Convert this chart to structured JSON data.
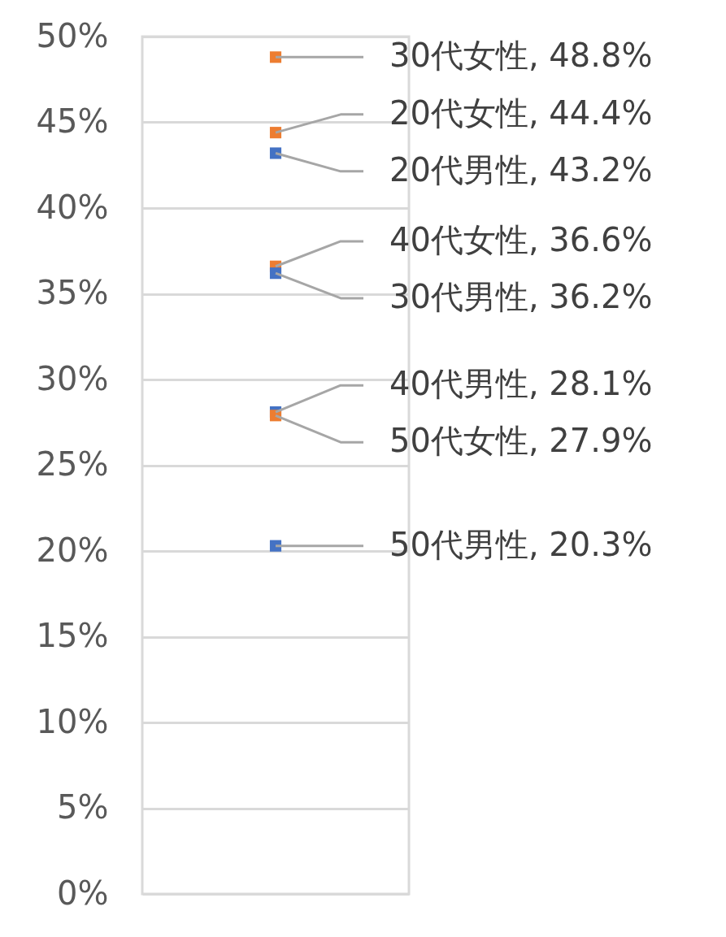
{
  "chart_data": {
    "type": "scatter",
    "categories": [
      null
    ],
    "ylim": [
      0,
      50
    ],
    "yticks": [
      {
        "value": 0,
        "label": "0%"
      },
      {
        "value": 5,
        "label": "5%"
      },
      {
        "value": 10,
        "label": "10%"
      },
      {
        "value": 15,
        "label": "15%"
      },
      {
        "value": 20,
        "label": "20%"
      },
      {
        "value": 25,
        "label": "25%"
      },
      {
        "value": 30,
        "label": "30%"
      },
      {
        "value": 35,
        "label": "35%"
      },
      {
        "value": 40,
        "label": "40%"
      },
      {
        "value": 45,
        "label": "45%"
      },
      {
        "value": 50,
        "label": "50%"
      }
    ],
    "grid": "y",
    "marker": "square",
    "legend": false,
    "series": [
      {
        "color": "#ed7d31",
        "values": [
          48.8
        ],
        "value_labels": [
          "30代女性, 48.8%"
        ]
      },
      {
        "color": "#ed7d31",
        "values": [
          44.4
        ],
        "value_labels": [
          "20代女性, 44.4%"
        ]
      },
      {
        "color": "#4472c4",
        "values": [
          43.2
        ],
        "value_labels": [
          "20代男性, 43.2%"
        ]
      },
      {
        "color": "#ed7d31",
        "values": [
          36.6
        ],
        "value_labels": [
          "40代女性, 36.6%"
        ]
      },
      {
        "color": "#4472c4",
        "values": [
          36.2
        ],
        "value_labels": [
          "30代男性, 36.2%"
        ]
      },
      {
        "color": "#4472c4",
        "values": [
          28.1
        ],
        "value_labels": [
          "40代男性, 28.1%"
        ]
      },
      {
        "color": "#ed7d31",
        "values": [
          27.9
        ],
        "value_labels": [
          "50代女性, 27.9%"
        ]
      },
      {
        "color": "#4472c4",
        "values": [
          20.3
        ],
        "value_labels": [
          "50代男性, 20.3%"
        ]
      }
    ]
  }
}
